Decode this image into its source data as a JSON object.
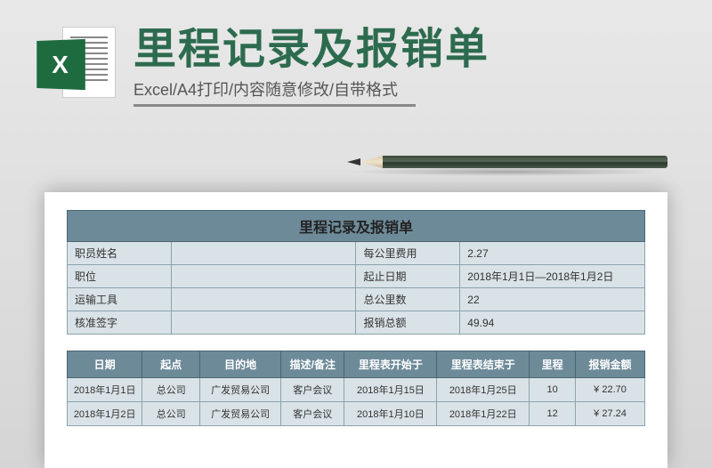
{
  "header": {
    "icon_letter": "X",
    "title": "里程记录及报销单",
    "subtitle": "Excel/A4打印/内容随意修改/自带格式"
  },
  "colors": {
    "title_color": "#2d6b4f",
    "excel_green": "#1e6b3f",
    "table_header_bg": "#6d8a99",
    "table_cell_bg": "#d9e2e6",
    "border": "#8ba3ae"
  },
  "form": {
    "title": "里程记录及报销单",
    "rows": [
      {
        "label": "职员姓名",
        "value": "",
        "mid_label": "每公里费用",
        "mid_value": "2.27"
      },
      {
        "label": "职位",
        "value": "",
        "mid_label": "起止日期",
        "mid_value": "2018年1月1日—2018年1月2日"
      },
      {
        "label": "运输工具",
        "value": "",
        "mid_label": "总公里数",
        "mid_value": "22"
      },
      {
        "label": "核准签字",
        "value": "",
        "mid_label": "报销总额",
        "mid_value": "49.94"
      }
    ]
  },
  "table": {
    "columns": [
      "日期",
      "起点",
      "目的地",
      "描述/备注",
      "里程表开始于",
      "里程表结束于",
      "里程",
      "报销金额"
    ],
    "col_widths": [
      "13%",
      "10%",
      "14%",
      "11%",
      "16%",
      "16%",
      "8%",
      "12%"
    ],
    "rows": [
      [
        "2018年1月1日",
        "总公司",
        "广发贸易公司",
        "客户会议",
        "2018年1月15日",
        "2018年1月25日",
        "10",
        "¥ 22.70"
      ],
      [
        "2018年1月2日",
        "总公司",
        "广发贸易公司",
        "客户会议",
        "2018年1月10日",
        "2018年1月22日",
        "12",
        "¥ 27.24"
      ]
    ]
  }
}
